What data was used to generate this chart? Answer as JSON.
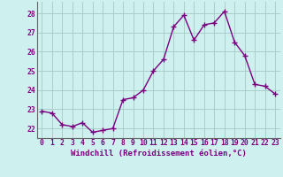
{
  "x": [
    0,
    1,
    2,
    3,
    4,
    5,
    6,
    7,
    8,
    9,
    10,
    11,
    12,
    13,
    14,
    15,
    16,
    17,
    18,
    19,
    20,
    21,
    22,
    23
  ],
  "y": [
    22.9,
    22.8,
    22.2,
    22.1,
    22.3,
    21.8,
    21.9,
    22.0,
    23.5,
    23.6,
    24.0,
    25.0,
    25.6,
    27.3,
    27.9,
    26.6,
    27.4,
    27.5,
    28.1,
    26.5,
    25.8,
    24.3,
    24.2,
    23.8
  ],
  "line_color": "#7B0080",
  "marker": "+",
  "markersize": 4,
  "linewidth": 1.0,
  "xlabel": "Windchill (Refroidissement éolien,°C)",
  "xlabel_fontsize": 6.5,
  "ylabel_ticks": [
    22,
    23,
    24,
    25,
    26,
    27,
    28
  ],
  "xlim": [
    -0.5,
    23.5
  ],
  "ylim": [
    21.5,
    28.6
  ],
  "bg_color": "#cef0ee",
  "grid_color": "#aacfc8",
  "tick_fontsize": 5.8
}
